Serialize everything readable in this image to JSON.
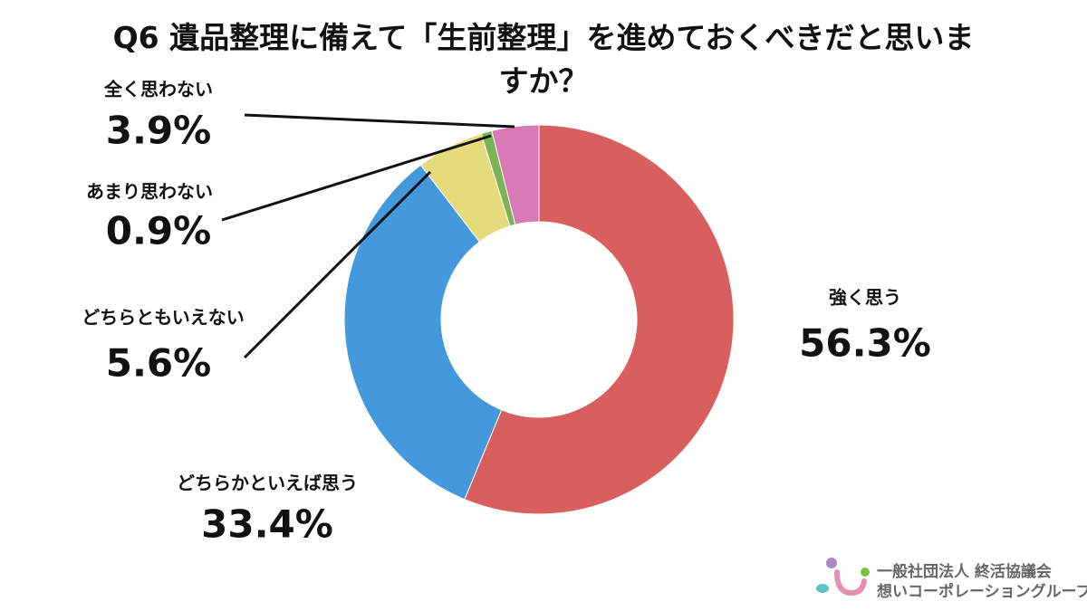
{
  "chart_data": {
    "type": "donut",
    "title": "Q6 遺品整理に備えて「生前整理」を進めておくべきだと思いますか？",
    "categories": [
      "強く思う",
      "どちらかといえば思う",
      "どちらともいえない",
      "あまり思わない",
      "全く思わない"
    ],
    "values": [
      56.3,
      33.4,
      5.6,
      0.9,
      3.9
    ],
    "value_labels": [
      "56.3%",
      "33.4%",
      "5.6%",
      "0.9%",
      "3.9%"
    ],
    "colors": [
      "#d95f5f",
      "#4499dd",
      "#e6db7a",
      "#7bb354",
      "#d679b4"
    ]
  },
  "footer": {
    "organization": "一般社団法人 終活協議会",
    "group": "想いコーポレーショングループ"
  }
}
